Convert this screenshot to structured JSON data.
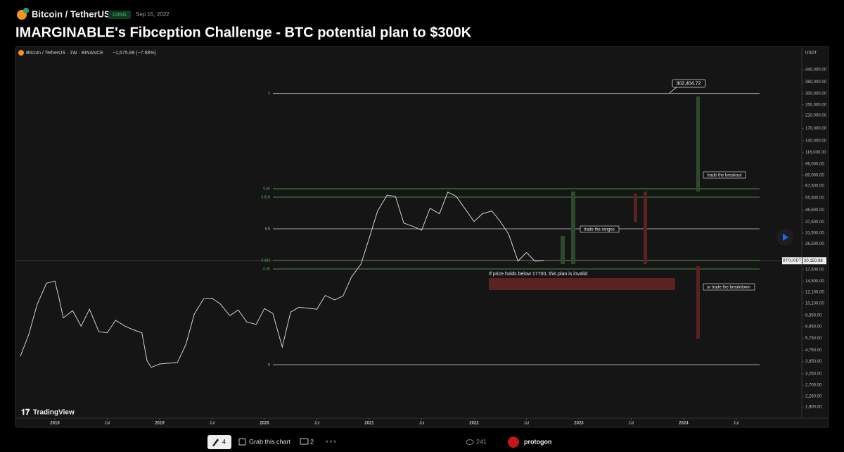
{
  "header": {
    "symbol": "Bitcoin / TetherUS",
    "badge": "LONG",
    "date": "Sep 15, 2022",
    "title": "IMARGINABLE's Fibception Challenge - BTC potential plan to $300K"
  },
  "chart": {
    "legend": "Bitcoin / TetherUS · 1W · BINANCE",
    "change": "−1,675.89 (−7.68%)",
    "currency": "USDT",
    "brand": "TradingView",
    "log_scale": true,
    "ylim": [
      1514,
      510000
    ],
    "yticks": [
      {
        "value": 440000,
        "label": "440,000.00"
      },
      {
        "value": 360000,
        "label": "360,000.00"
      },
      {
        "value": 300000,
        "label": "300,000.00"
      },
      {
        "value": 250000,
        "label": "250,000.00"
      },
      {
        "value": 210000,
        "label": "210,000.00"
      },
      {
        "value": 170000,
        "label": "170,000.00"
      },
      {
        "value": 140000,
        "label": "140,000.00"
      },
      {
        "value": 116000,
        "label": "116,000.00"
      },
      {
        "value": 96000,
        "label": "96,000.00"
      },
      {
        "value": 80000,
        "label": "80,000.00"
      },
      {
        "value": 67500,
        "label": "67,500.00"
      },
      {
        "value": 55500,
        "label": "55,500.00"
      },
      {
        "value": 45500,
        "label": "45,500.00"
      },
      {
        "value": 37500,
        "label": "37,500.00"
      },
      {
        "value": 31500,
        "label": "31,500.00"
      },
      {
        "value": 26500,
        "label": "26,500.00"
      },
      {
        "value": 17500,
        "label": "17,500.00"
      },
      {
        "value": 14500,
        "label": "14,500.00"
      },
      {
        "value": 12100,
        "label": "12,100.00"
      },
      {
        "value": 10100,
        "label": "10,100.00"
      },
      {
        "value": 8350,
        "label": "8,350.00"
      },
      {
        "value": 6950,
        "label": "6,950.00"
      },
      {
        "value": 5750,
        "label": "5,750.00"
      },
      {
        "value": 4750,
        "label": "4,750.00"
      },
      {
        "value": 3950,
        "label": "3,950.00"
      },
      {
        "value": 3250,
        "label": "3,250.00"
      },
      {
        "value": 2700,
        "label": "2,700.00"
      },
      {
        "value": 2260,
        "label": "2,260.00"
      },
      {
        "value": 1900,
        "label": "1,900.00"
      }
    ],
    "xlim": [
      2017.624,
      2025.128
    ],
    "xticks": [
      2018,
      {
        "value": 2018.5,
        "label": "Jul"
      },
      2019,
      {
        "value": 2019.5,
        "label": "Jul"
      },
      2020,
      {
        "value": 2020.5,
        "label": "Jul"
      },
      2021,
      {
        "value": 2021.5,
        "label": "Jul"
      },
      2022,
      {
        "value": 2022.5,
        "label": "Jul"
      },
      2023,
      {
        "value": 2023.5,
        "label": "Jul"
      },
      2024,
      {
        "value": 2024.5,
        "label": "Jul"
      }
    ],
    "price": {
      "x": [
        2017.67,
        2017.75,
        2017.83,
        2017.92,
        2018.0,
        2018.04,
        2018.08,
        2018.17,
        2018.25,
        2018.33,
        2018.42,
        2018.5,
        2018.58,
        2018.67,
        2018.75,
        2018.83,
        2018.88,
        2018.92,
        2019.0,
        2019.17,
        2019.25,
        2019.33,
        2019.42,
        2019.5,
        2019.58,
        2019.67,
        2019.75,
        2019.83,
        2019.92,
        2020.0,
        2020.08,
        2020.17,
        2020.25,
        2020.33,
        2020.5,
        2020.58,
        2020.67,
        2020.75,
        2020.83,
        2020.92,
        2021.0,
        2021.08,
        2021.17,
        2021.25,
        2021.33,
        2021.42,
        2021.5,
        2021.58,
        2021.67,
        2021.75,
        2021.83,
        2021.92,
        2022.0,
        2022.08,
        2022.17,
        2022.25,
        2022.33,
        2022.42,
        2022.5,
        2022.58,
        2022.67
      ],
      "values": [
        4300,
        6100,
        9900,
        14000,
        14500,
        11000,
        8000,
        9000,
        7000,
        9200,
        6400,
        6300,
        7700,
        7000,
        6600,
        6300,
        4000,
        3600,
        3800,
        3900,
        5200,
        8500,
        10900,
        11000,
        10000,
        8300,
        9100,
        7500,
        7200,
        9300,
        8600,
        5000,
        8800,
        9500,
        9200,
        11500,
        10700,
        11400,
        15500,
        19000,
        29000,
        45000,
        58000,
        57000,
        37000,
        35000,
        33000,
        47000,
        43000,
        61000,
        57000,
        46000,
        38000,
        43000,
        45000,
        38000,
        31000,
        20000,
        23000,
        20000,
        20150.98
      ],
      "color": "#d0d0d0"
    },
    "last": {
      "name": "BTCUSDT",
      "value": 20150.98,
      "label": "20,150.98"
    },
    "target": {
      "value": 302404.72,
      "label": "302,404.72"
    },
    "fib": [
      {
        "label": "1",
        "value": 300000,
        "color": "#cfcfcf"
      },
      {
        "label": "0.65",
        "value": 64400,
        "color": "#5fae57"
      },
      {
        "label": "0.618",
        "value": 56200,
        "color": "#5fae57"
      },
      {
        "label": "0.5",
        "value": 33700,
        "color": "#cfcfcf"
      },
      {
        "label": "0.382",
        "value": 20220,
        "color": "#5fae57"
      },
      {
        "label": "0.35",
        "value": 17640,
        "color": "#5fae57"
      },
      {
        "label": "0",
        "value": 3760,
        "color": "#cfcfcf"
      }
    ],
    "notes": {
      "breakout": "trade the breakout",
      "ranges": "trade the ranges",
      "breakdown": "or trade the breakdown",
      "invalid": "If price holds below 17700, this plan is invalid"
    }
  },
  "footer": {
    "boosts": "4",
    "grab": "Grab this chart",
    "comments": "2",
    "views": "241",
    "author": "protogon"
  }
}
